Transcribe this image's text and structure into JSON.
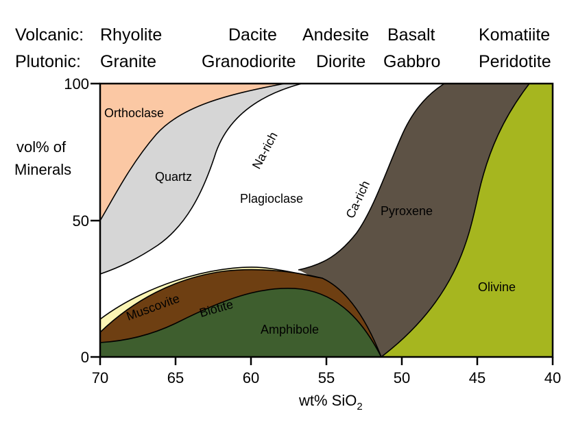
{
  "header": {
    "volcanic_label": "Volcanic:",
    "plutonic_label": "Plutonic:",
    "volcanic_rocks": [
      "Rhyolite",
      "Dacite",
      "Andesite",
      "Basalt",
      "Komatiite"
    ],
    "plutonic_rocks": [
      "Granite",
      "Granodiorite",
      "Diorite",
      "Gabbro",
      "Peridotite"
    ]
  },
  "axes": {
    "y_label_line1": "vol% of",
    "y_label_line2": "Minerals",
    "y_ticks": [
      "100",
      "50",
      "0"
    ],
    "x_ticks": [
      "70",
      "65",
      "60",
      "55",
      "50",
      "45",
      "40"
    ],
    "x_label_main": "wt% SiO",
    "x_label_sub": "2",
    "x_range": [
      70,
      40
    ],
    "y_range": [
      0,
      100
    ]
  },
  "minerals": {
    "orthoclase": "Orthoclase",
    "quartz": "Quartz",
    "plagioclase": "Plagioclase",
    "na_rich": "Na-rich",
    "ca_rich": "Ca-rich",
    "pyroxene": "Pyroxene",
    "olivine": "Olivine",
    "muscovite": "Muscovite",
    "biotite": "Biotite",
    "amphibole": "Amphibole"
  },
  "colors": {
    "orthoclase": "#fbc8a4",
    "quartz": "#d6d6d6",
    "plagioclase": "#ffffff",
    "muscovite": "#fbf5b5",
    "biotite": "#6e3f12",
    "amphibole": "#3e5e2e",
    "pyroxene": "#5d5245",
    "olivine": "#a6b61f"
  }
}
